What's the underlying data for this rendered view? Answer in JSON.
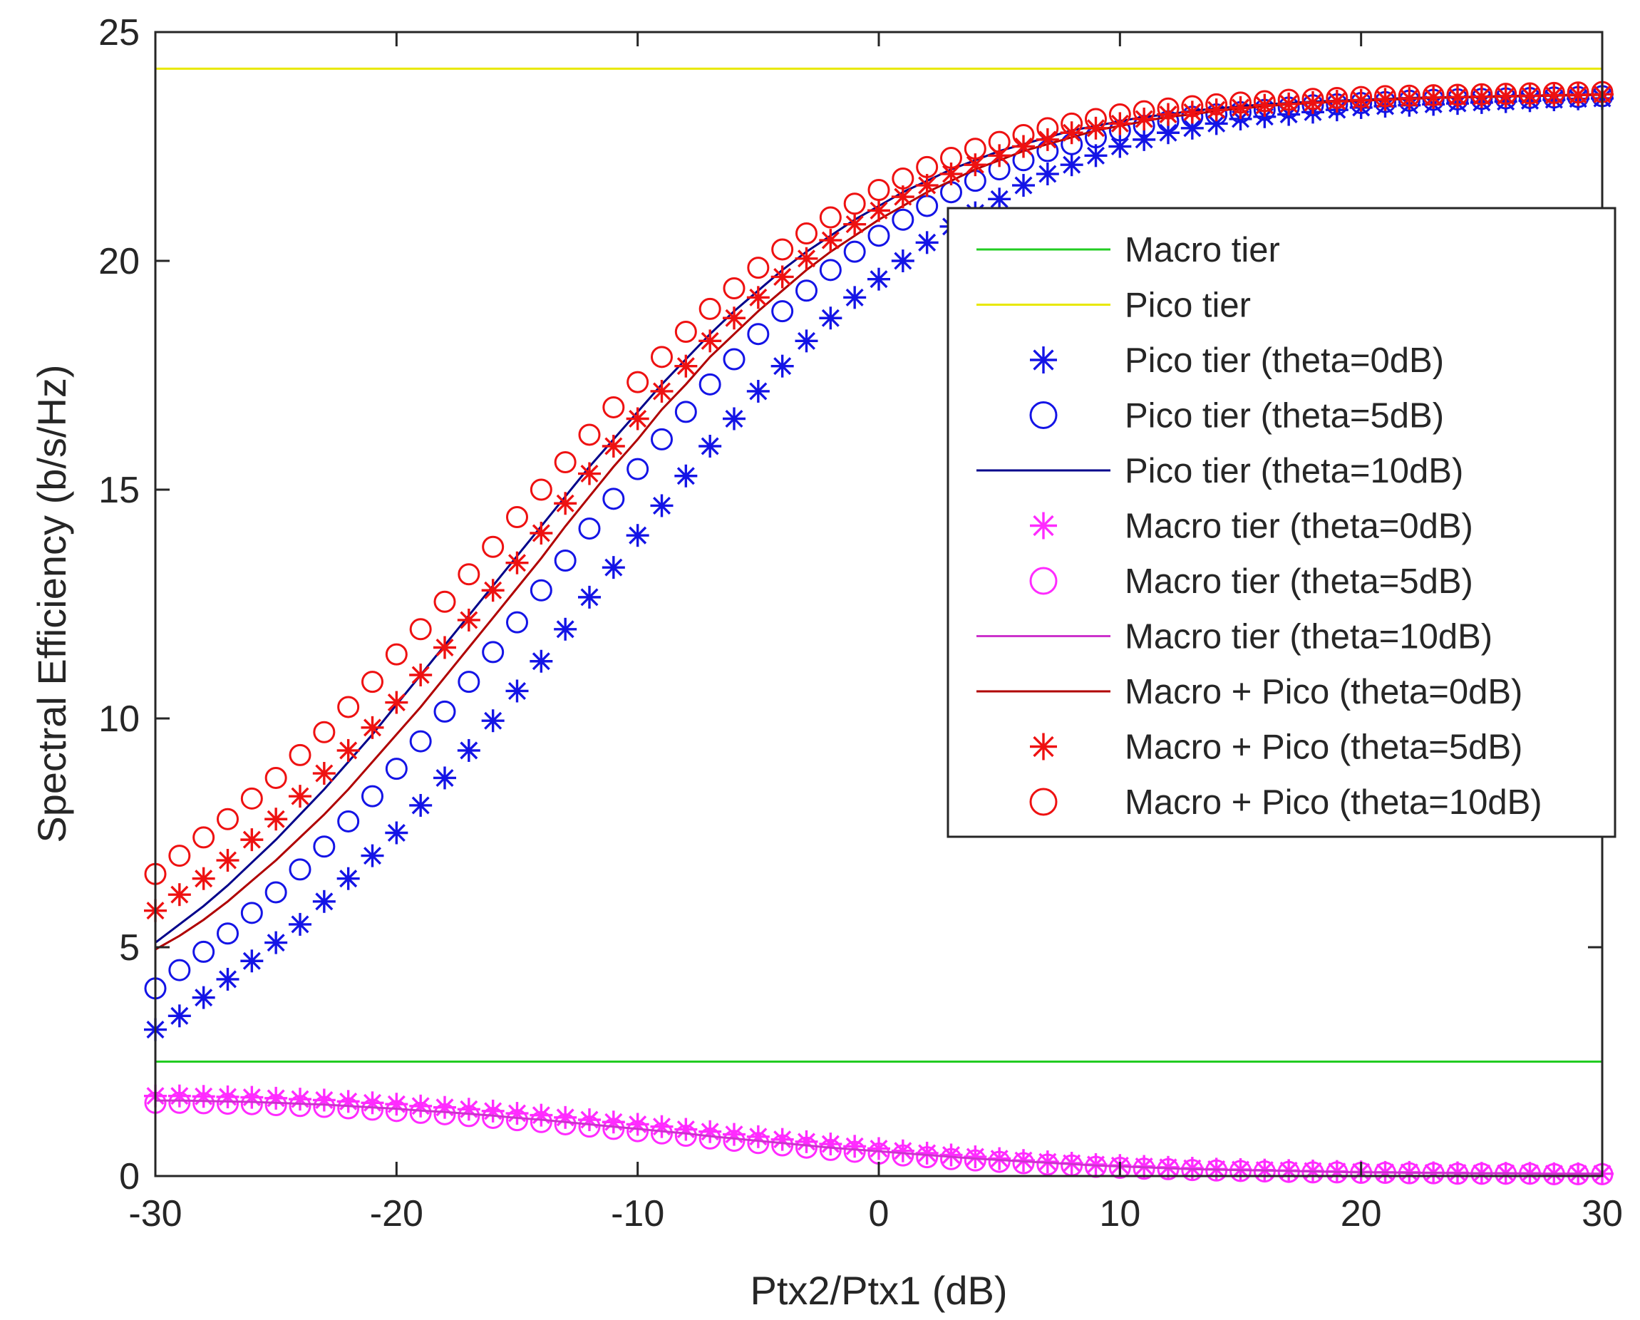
{
  "chart_data": {
    "type": "line",
    "title": "",
    "xlabel": "Ptx2/Ptx1 (dB)",
    "ylabel": "Spectral Efficiency (b/s/Hz)",
    "xlim": [
      -30,
      30
    ],
    "ylim": [
      0,
      25
    ],
    "xticks": [
      "-30",
      "-20",
      "-10",
      "0",
      "10",
      "20",
      "30"
    ],
    "yticks": [
      "0",
      "5",
      "10",
      "15",
      "20",
      "25"
    ],
    "legend_position": "center-right",
    "grid": false,
    "x": [
      -30,
      -29,
      -28,
      -27,
      -26,
      -25,
      -24,
      -23,
      -22,
      -21,
      -20,
      -19,
      -18,
      -17,
      -16,
      -15,
      -14,
      -13,
      -12,
      -11,
      -10,
      -9,
      -8,
      -7,
      -6,
      -5,
      -4,
      -3,
      -2,
      -1,
      0,
      1,
      2,
      3,
      4,
      5,
      6,
      7,
      8,
      9,
      10,
      11,
      12,
      13,
      14,
      15,
      16,
      17,
      18,
      19,
      20,
      21,
      22,
      23,
      24,
      25,
      26,
      27,
      28,
      29,
      30
    ],
    "series": [
      {
        "name": "Macro tier",
        "style": "line",
        "color": "#22cc22",
        "marker": "none",
        "constant": 2.5
      },
      {
        "name": "Pico tier",
        "style": "line",
        "color": "#e8e800",
        "marker": "none",
        "constant": 24.2
      },
      {
        "name": "Pico tier (theta=0dB)",
        "style": "marker",
        "color": "#1414e6",
        "marker": "star",
        "values": [
          3.2,
          3.5,
          3.9,
          4.3,
          4.7,
          5.1,
          5.5,
          6.0,
          6.5,
          7.0,
          7.5,
          8.1,
          8.7,
          9.3,
          9.95,
          10.6,
          11.25,
          11.95,
          12.65,
          13.3,
          14.0,
          14.65,
          15.3,
          15.95,
          16.55,
          17.15,
          17.7,
          18.25,
          18.75,
          19.2,
          19.6,
          20.0,
          20.4,
          20.75,
          21.05,
          21.35,
          21.65,
          21.9,
          22.1,
          22.3,
          22.5,
          22.65,
          22.8,
          22.9,
          23.0,
          23.1,
          23.15,
          23.2,
          23.25,
          23.3,
          23.35,
          23.38,
          23.4,
          23.42,
          23.44,
          23.46,
          23.48,
          23.5,
          23.52,
          23.54,
          23.55
        ]
      },
      {
        "name": "Pico tier (theta=5dB)",
        "style": "marker",
        "color": "#1414e6",
        "marker": "circle",
        "values": [
          4.1,
          4.5,
          4.9,
          5.3,
          5.75,
          6.2,
          6.7,
          7.2,
          7.75,
          8.3,
          8.9,
          9.5,
          10.15,
          10.8,
          11.45,
          12.1,
          12.8,
          13.45,
          14.15,
          14.8,
          15.45,
          16.1,
          16.7,
          17.3,
          17.85,
          18.4,
          18.9,
          19.35,
          19.8,
          20.2,
          20.55,
          20.9,
          21.2,
          21.5,
          21.75,
          22.0,
          22.2,
          22.4,
          22.55,
          22.7,
          22.85,
          22.95,
          23.05,
          23.15,
          23.2,
          23.25,
          23.3,
          23.35,
          23.4,
          23.42,
          23.45,
          23.47,
          23.5,
          23.52,
          23.53,
          23.54,
          23.55,
          23.56,
          23.57,
          23.58,
          23.6
        ]
      },
      {
        "name": "Pico tier (theta=10dB)",
        "style": "line",
        "color": "#00008b",
        "marker": "none",
        "values": [
          5.1,
          5.5,
          5.9,
          6.35,
          6.85,
          7.35,
          7.9,
          8.45,
          9.05,
          9.65,
          10.3,
          10.95,
          11.6,
          12.25,
          12.9,
          13.55,
          14.2,
          14.85,
          15.5,
          16.1,
          16.7,
          17.3,
          17.85,
          18.4,
          18.9,
          19.35,
          19.8,
          20.2,
          20.55,
          20.9,
          21.2,
          21.5,
          21.75,
          22.0,
          22.2,
          22.4,
          22.55,
          22.7,
          22.85,
          22.95,
          23.05,
          23.15,
          23.2,
          23.28,
          23.33,
          23.38,
          23.42,
          23.45,
          23.48,
          23.5,
          23.52,
          23.54,
          23.56,
          23.57,
          23.58,
          23.59,
          23.6,
          23.61,
          23.62,
          23.63,
          23.64
        ]
      },
      {
        "name": "Macro tier (theta=0dB)",
        "style": "marker",
        "color": "#ff2bff",
        "marker": "star",
        "values": [
          1.75,
          1.75,
          1.74,
          1.73,
          1.72,
          1.7,
          1.68,
          1.66,
          1.63,
          1.6,
          1.57,
          1.53,
          1.5,
          1.46,
          1.42,
          1.37,
          1.33,
          1.28,
          1.23,
          1.18,
          1.13,
          1.08,
          1.02,
          0.97,
          0.91,
          0.86,
          0.8,
          0.75,
          0.7,
          0.65,
          0.6,
          0.55,
          0.5,
          0.46,
          0.42,
          0.38,
          0.34,
          0.31,
          0.28,
          0.25,
          0.23,
          0.21,
          0.19,
          0.17,
          0.15,
          0.14,
          0.13,
          0.12,
          0.11,
          0.1,
          0.09,
          0.08,
          0.08,
          0.07,
          0.07,
          0.06,
          0.06,
          0.06,
          0.05,
          0.05,
          0.05
        ]
      },
      {
        "name": "Macro tier (theta=5dB)",
        "style": "marker",
        "color": "#ff2bff",
        "marker": "circle",
        "values": [
          1.6,
          1.6,
          1.59,
          1.58,
          1.57,
          1.55,
          1.53,
          1.51,
          1.48,
          1.45,
          1.42,
          1.38,
          1.35,
          1.31,
          1.27,
          1.22,
          1.18,
          1.13,
          1.08,
          1.03,
          0.98,
          0.93,
          0.88,
          0.82,
          0.77,
          0.72,
          0.67,
          0.62,
          0.57,
          0.53,
          0.49,
          0.45,
          0.41,
          0.37,
          0.34,
          0.31,
          0.28,
          0.25,
          0.23,
          0.2,
          0.18,
          0.16,
          0.15,
          0.13,
          0.12,
          0.11,
          0.1,
          0.09,
          0.08,
          0.08,
          0.07,
          0.07,
          0.06,
          0.06,
          0.05,
          0.05,
          0.05,
          0.05,
          0.04,
          0.04,
          0.04
        ]
      },
      {
        "name": "Macro tier (theta=10dB)",
        "style": "line",
        "color": "#cc33cc",
        "marker": "none",
        "values": [
          1.65,
          1.65,
          1.64,
          1.63,
          1.62,
          1.6,
          1.58,
          1.56,
          1.53,
          1.5,
          1.47,
          1.43,
          1.4,
          1.36,
          1.32,
          1.27,
          1.23,
          1.18,
          1.13,
          1.08,
          1.03,
          0.98,
          0.93,
          0.87,
          0.82,
          0.77,
          0.72,
          0.67,
          0.62,
          0.58,
          0.54,
          0.5,
          0.46,
          0.42,
          0.38,
          0.35,
          0.32,
          0.29,
          0.26,
          0.23,
          0.21,
          0.19,
          0.17,
          0.15,
          0.14,
          0.13,
          0.12,
          0.11,
          0.1,
          0.09,
          0.08,
          0.08,
          0.07,
          0.07,
          0.06,
          0.06,
          0.06,
          0.05,
          0.05,
          0.05,
          0.05
        ]
      },
      {
        "name": "Macro + Pico (theta=0dB)",
        "style": "line",
        "color": "#b00000",
        "marker": "none",
        "values": [
          4.95,
          5.25,
          5.6,
          6.0,
          6.45,
          6.9,
          7.4,
          7.9,
          8.45,
          9.05,
          9.65,
          10.25,
          10.9,
          11.55,
          12.2,
          12.85,
          13.5,
          14.2,
          14.85,
          15.5,
          16.1,
          16.75,
          17.3,
          17.9,
          18.4,
          18.9,
          19.35,
          19.8,
          20.2,
          20.55,
          20.9,
          21.2,
          21.5,
          21.75,
          22.0,
          22.2,
          22.4,
          22.55,
          22.7,
          22.85,
          22.95,
          23.05,
          23.15,
          23.2,
          23.28,
          23.33,
          23.38,
          23.42,
          23.45,
          23.48,
          23.5,
          23.52,
          23.54,
          23.56,
          23.57,
          23.58,
          23.59,
          23.6,
          23.61,
          23.62,
          23.63
        ]
      },
      {
        "name": "Macro + Pico (theta=5dB)",
        "style": "marker",
        "color": "#ee1111",
        "marker": "star",
        "values": [
          5.8,
          6.15,
          6.5,
          6.9,
          7.35,
          7.8,
          8.3,
          8.8,
          9.3,
          9.8,
          10.35,
          10.95,
          11.55,
          12.15,
          12.8,
          13.4,
          14.05,
          14.7,
          15.35,
          15.95,
          16.55,
          17.15,
          17.7,
          18.25,
          18.75,
          19.2,
          19.65,
          20.05,
          20.45,
          20.8,
          21.1,
          21.4,
          21.65,
          21.9,
          22.1,
          22.3,
          22.5,
          22.65,
          22.8,
          22.9,
          23.0,
          23.1,
          23.2,
          23.25,
          23.3,
          23.35,
          23.4,
          23.43,
          23.46,
          23.49,
          23.51,
          23.53,
          23.55,
          23.57,
          23.58,
          23.59,
          23.6,
          23.61,
          23.62,
          23.63,
          23.64
        ]
      },
      {
        "name": "Macro + Pico (theta=10dB)",
        "style": "marker",
        "color": "#ee1111",
        "marker": "circle",
        "values": [
          6.6,
          7.0,
          7.4,
          7.8,
          8.25,
          8.7,
          9.2,
          9.7,
          10.25,
          10.8,
          11.4,
          11.95,
          12.55,
          13.15,
          13.75,
          14.4,
          15.0,
          15.6,
          16.2,
          16.8,
          17.35,
          17.9,
          18.45,
          18.95,
          19.4,
          19.85,
          20.25,
          20.6,
          20.95,
          21.25,
          21.55,
          21.8,
          22.05,
          22.25,
          22.45,
          22.6,
          22.75,
          22.9,
          23.0,
          23.1,
          23.2,
          23.27,
          23.33,
          23.38,
          23.42,
          23.46,
          23.49,
          23.52,
          23.54,
          23.56,
          23.58,
          23.6,
          23.61,
          23.62,
          23.63,
          23.64,
          23.65,
          23.66,
          23.67,
          23.68,
          23.69
        ]
      }
    ]
  }
}
